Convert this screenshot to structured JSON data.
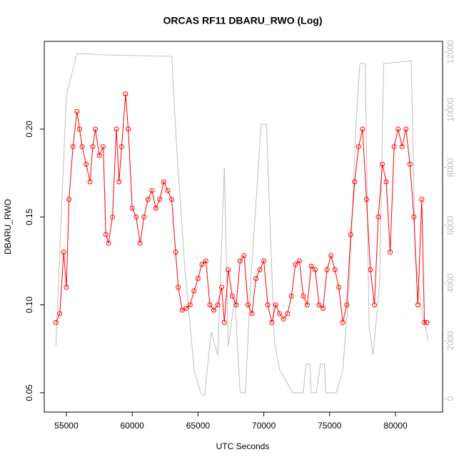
{
  "chart_data": {
    "type": "line",
    "title": "ORCAS RF11 DBARU_RWO (Log)",
    "xlabel": "UTC Seconds",
    "ylabel": "DBARU_RWO",
    "xlim": [
      53320,
      83580
    ],
    "xticks": [
      55000,
      60000,
      65000,
      70000,
      75000,
      80000
    ],
    "ylim": [
      0.039,
      0.2499
    ],
    "yticks": [
      0.05,
      {
        "value": 0.1,
        "label": "0.10"
      },
      0.15,
      {
        "value": 0.2,
        "label": "0.20"
      }
    ],
    "y2lim": [
      -470,
      12370
    ],
    "y2ticks": [
      0,
      2000,
      4000,
      6000,
      8000,
      10000,
      12000
    ],
    "series": [
      {
        "color": "#ff0000",
        "marker": "circle",
        "x": [
          54200,
          54500,
          54800,
          55000,
          55200,
          55500,
          55800,
          56000,
          56200,
          56500,
          56800,
          57000,
          57200,
          57500,
          57800,
          58000,
          58200,
          58500,
          58800,
          59000,
          59200,
          59500,
          59700,
          60000,
          60300,
          60600,
          60900,
          61200,
          61500,
          61800,
          62100,
          62400,
          62700,
          63000,
          63300,
          63500,
          63800,
          64100,
          64400,
          64700,
          65000,
          65300,
          65600,
          65900,
          66200,
          66500,
          66800,
          67000,
          67300,
          67600,
          67900,
          68200,
          68500,
          68800,
          69100,
          69400,
          69700,
          70000,
          70300,
          70600,
          70900,
          71200,
          71500,
          71800,
          72100,
          72400,
          72700,
          73000,
          73300,
          73600,
          73900,
          74200,
          74500,
          74800,
          75100,
          75400,
          75700,
          76000,
          76300,
          76600,
          76900,
          77200,
          77500,
          77800,
          78100,
          78400,
          78700,
          79000,
          79300,
          79600,
          79900,
          80200,
          80500,
          80800,
          81100,
          81400,
          81700,
          82000,
          82200,
          82400
        ],
        "values": [
          0.09,
          0.095,
          0.13,
          0.11,
          0.16,
          0.19,
          0.21,
          0.2,
          0.19,
          0.18,
          0.17,
          0.19,
          0.2,
          0.185,
          0.19,
          0.14,
          0.135,
          0.15,
          0.2,
          0.17,
          0.19,
          0.22,
          0.2,
          0.155,
          0.15,
          0.135,
          0.15,
          0.16,
          0.165,
          0.155,
          0.16,
          0.17,
          0.165,
          0.16,
          0.13,
          0.11,
          0.097,
          0.098,
          0.1,
          0.108,
          0.115,
          0.123,
          0.125,
          0.1,
          0.097,
          0.1,
          0.11,
          0.09,
          0.12,
          0.105,
          0.1,
          0.125,
          0.128,
          0.1,
          0.095,
          0.115,
          0.12,
          0.125,
          0.1,
          0.09,
          0.1,
          0.095,
          0.092,
          0.095,
          0.105,
          0.123,
          0.125,
          0.105,
          0.1,
          0.122,
          0.12,
          0.1,
          0.098,
          0.12,
          0.128,
          0.12,
          0.11,
          0.09,
          0.1,
          0.14,
          0.17,
          0.19,
          0.2,
          0.16,
          0.12,
          0.1,
          0.15,
          0.18,
          0.17,
          0.13,
          0.19,
          0.2,
          0.19,
          0.2,
          0.18,
          0.15,
          0.1,
          0.16,
          0.09,
          0.09
        ]
      },
      {
        "color": "#bebebe",
        "axis": "y2",
        "x": [
          54200,
          55000,
          55800,
          58000,
          63000,
          63400,
          64000,
          64700,
          65200,
          65500,
          66000,
          66500,
          67000,
          67300,
          67800,
          68200,
          68600,
          69000,
          69800,
          70200,
          70800,
          71200,
          72200,
          73000,
          73200,
          73500,
          73600,
          74000,
          74300,
          74600,
          74700,
          75500,
          76000,
          76500,
          77000,
          77300,
          77700,
          78000,
          78300,
          78800,
          79100,
          81200,
          81500,
          82000,
          82500
        ],
        "values": [
          1800,
          10500,
          11950,
          11900,
          11850,
          8500,
          4500,
          1000,
          200,
          100,
          2300,
          1500,
          8000,
          1800,
          3500,
          200,
          200,
          4000,
          9500,
          9500,
          2000,
          1000,
          200,
          200,
          1200,
          1200,
          200,
          200,
          1200,
          1200,
          200,
          200,
          1000,
          4000,
          9500,
          11600,
          11600,
          2500,
          1500,
          4000,
          11600,
          11700,
          5000,
          3000,
          2000
        ]
      }
    ]
  }
}
